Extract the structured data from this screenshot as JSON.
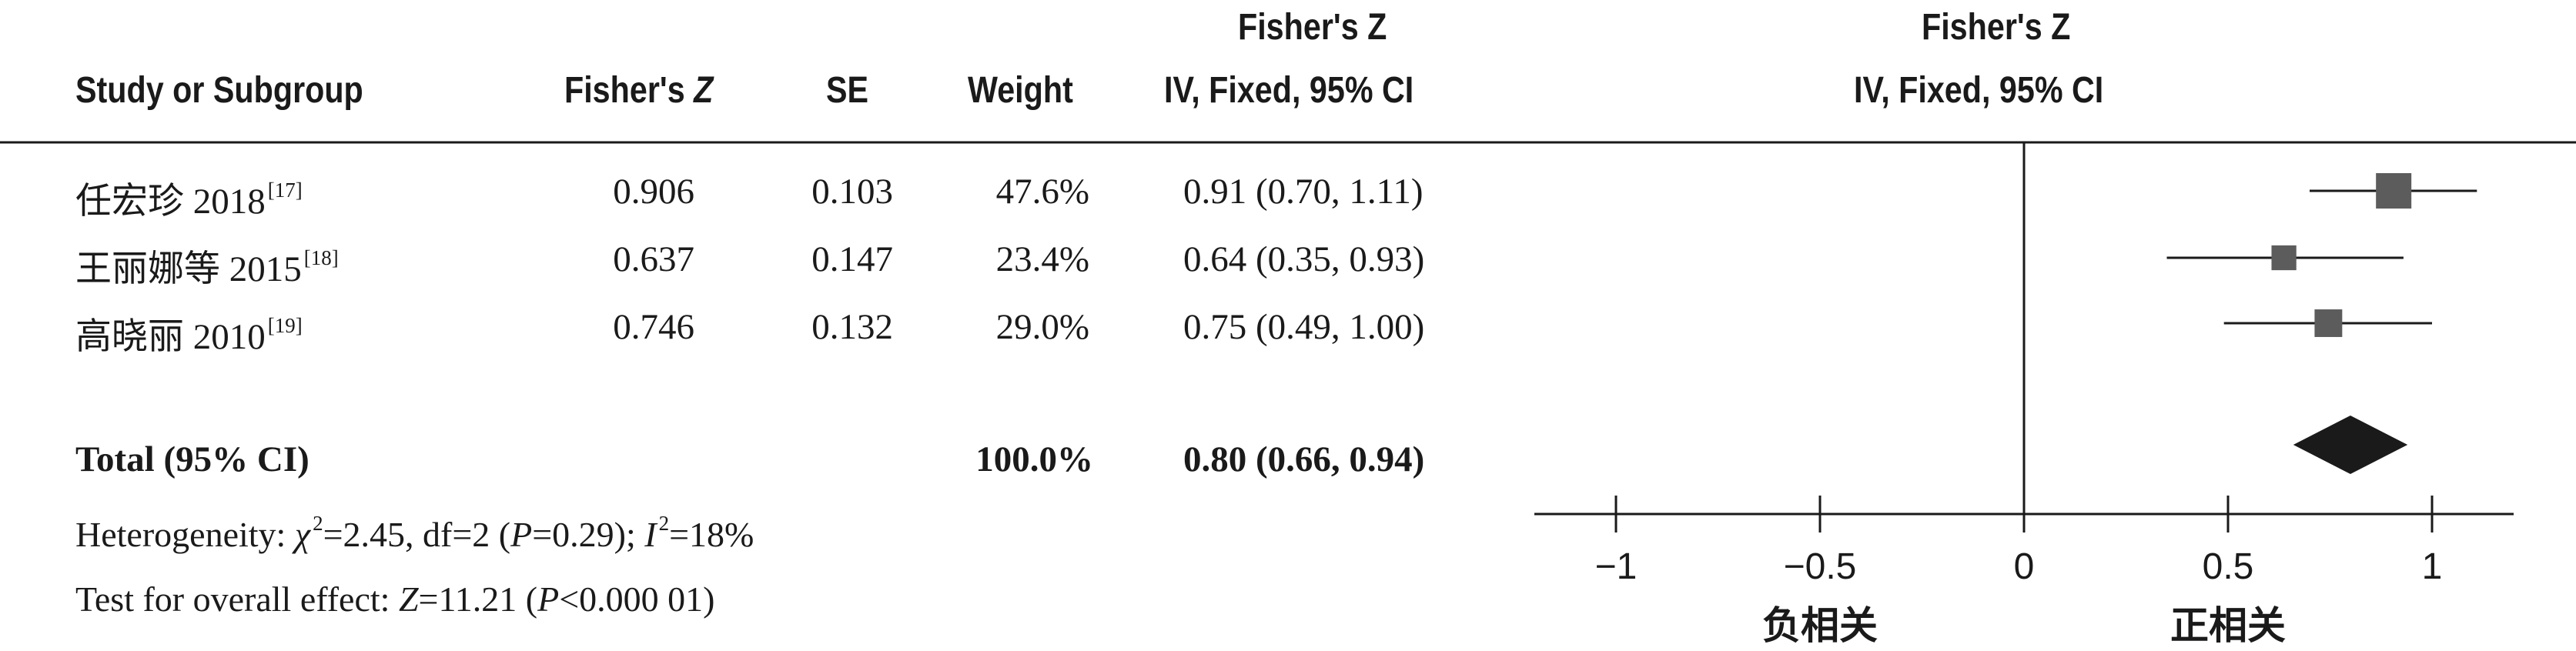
{
  "header": {
    "top_effect": "Fisher's Z",
    "top_plot": "Fisher's Z",
    "col_study": "Study or Subgroup",
    "col_z_name": "Fisher's",
    "col_z_sym": "Z",
    "col_se": "SE",
    "col_weight": "Weight",
    "col_ci": "IV, Fixed, 95% CI",
    "col_plot_ci": "IV, Fixed, 95% CI"
  },
  "studies": [
    {
      "name": "任宏珍 2018",
      "ref": "[17]",
      "z": "0.906",
      "se": "0.103",
      "weight": "47.6%",
      "ci": "0.91 (0.70, 1.11)"
    },
    {
      "name": "王丽娜等 2015",
      "ref": "[18]",
      "z": "0.637",
      "se": "0.147",
      "weight": "23.4%",
      "ci": "0.64 (0.35, 0.93)"
    },
    {
      "name": "高晓丽 2010",
      "ref": "[19]",
      "z": "0.746",
      "se": "0.132",
      "weight": "29.0%",
      "ci": "0.75 (0.49, 1.00)"
    }
  ],
  "total": {
    "label": "Total (95% CI)",
    "weight": "100.0%",
    "ci": "0.80 (0.66, 0.94)"
  },
  "heterogeneity": {
    "prefix": "Heterogeneity: ",
    "chi": "χ",
    "chi_sup": "2",
    "chi_val": "=2.45, df=2 (",
    "p_sym": "P",
    "p_val": "=0.29); ",
    "i_sym": "I",
    "i_sup": "2",
    "i_val": "=18%"
  },
  "overall": {
    "prefix": "Test for overall effect: ",
    "z_sym": "Z",
    "z_val": "=11.21 (",
    "p_sym": "P",
    "p_val": "<0.000 01)"
  },
  "chart_data": {
    "type": "forest",
    "xlim": [
      -1.2,
      1.2
    ],
    "ticks": [
      {
        "value": -1,
        "label": "−1"
      },
      {
        "value": -0.5,
        "label": "−0.5"
      },
      {
        "value": 0,
        "label": "0"
      },
      {
        "value": 0.5,
        "label": "0.5"
      },
      {
        "value": 1,
        "label": "1"
      }
    ],
    "studies": [
      {
        "est": 0.906,
        "lo": 0.7,
        "hi": 1.11,
        "weight": 47.6
      },
      {
        "est": 0.637,
        "lo": 0.35,
        "hi": 0.93,
        "weight": 23.4
      },
      {
        "est": 0.746,
        "lo": 0.49,
        "hi": 1.0,
        "weight": 29.0
      }
    ],
    "pooled": {
      "est": 0.8,
      "lo": 0.66,
      "hi": 0.94
    },
    "left_label": "负相关",
    "right_label": "正相关"
  }
}
